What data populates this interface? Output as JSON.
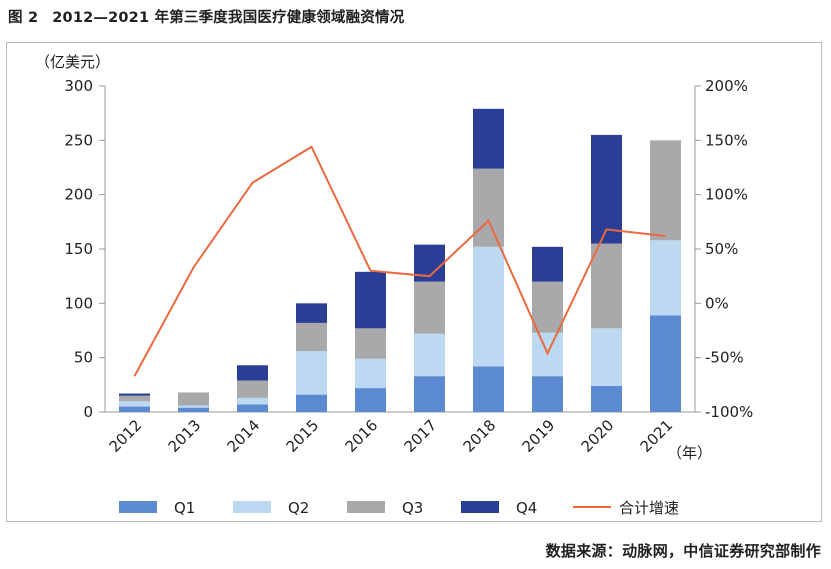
{
  "figure": {
    "number": "图 2",
    "title": "2012—2021 年第三季度我国医疗健康领域融资情况",
    "source": "数据来源：动脉网，中信证券研究部制作"
  },
  "colors": {
    "q1": "#5b8ad0",
    "q2": "#bcd9f1",
    "q3": "#a9a8aa",
    "q4": "#2a3e96",
    "line": "#ea6a40",
    "axis": "#9a9a9a"
  },
  "chart_data": {
    "type": "bar",
    "stacked": true,
    "title": "2012—2021 年第三季度我国医疗健康领域融资情况",
    "categories": [
      "2012",
      "2013",
      "2014",
      "2015",
      "2016",
      "2017",
      "2018",
      "2019",
      "2020",
      "2021"
    ],
    "series": [
      {
        "name": "Q1",
        "color_key": "q1",
        "values": [
          5,
          4,
          7,
          16,
          22,
          33,
          42,
          33,
          24,
          89
        ]
      },
      {
        "name": "Q2",
        "color_key": "q2",
        "values": [
          5,
          2,
          6,
          40,
          27,
          39,
          110,
          40,
          53,
          69
        ]
      },
      {
        "name": "Q3",
        "color_key": "q3",
        "values": [
          5,
          12,
          16,
          26,
          28,
          48,
          72,
          47,
          78,
          92
        ]
      },
      {
        "name": "Q4",
        "color_key": "q4",
        "values": [
          2,
          0,
          14,
          18,
          52,
          34,
          55,
          32,
          100,
          0
        ]
      }
    ],
    "line": {
      "name": "合计增速",
      "axis": "right",
      "color_key": "line",
      "values": [
        -67,
        33,
        111,
        144,
        30,
        25,
        76,
        -46,
        68,
        62
      ]
    },
    "ylabel": "（亿美元）",
    "ylim": [
      0,
      300
    ],
    "yticks": [
      0,
      50,
      100,
      150,
      200,
      250,
      300
    ],
    "y2lim": [
      -100,
      200
    ],
    "y2ticks": [
      -100,
      -50,
      0,
      50,
      100,
      150,
      200
    ],
    "y2ticklabels": [
      "-100%",
      "-50%",
      "0%",
      "50%",
      "100%",
      "150%",
      "200%"
    ],
    "xlabel": "（年）",
    "legend": [
      "Q1",
      "Q2",
      "Q3",
      "Q4",
      "合计增速"
    ],
    "legend_position": "bottom",
    "grid": false
  }
}
